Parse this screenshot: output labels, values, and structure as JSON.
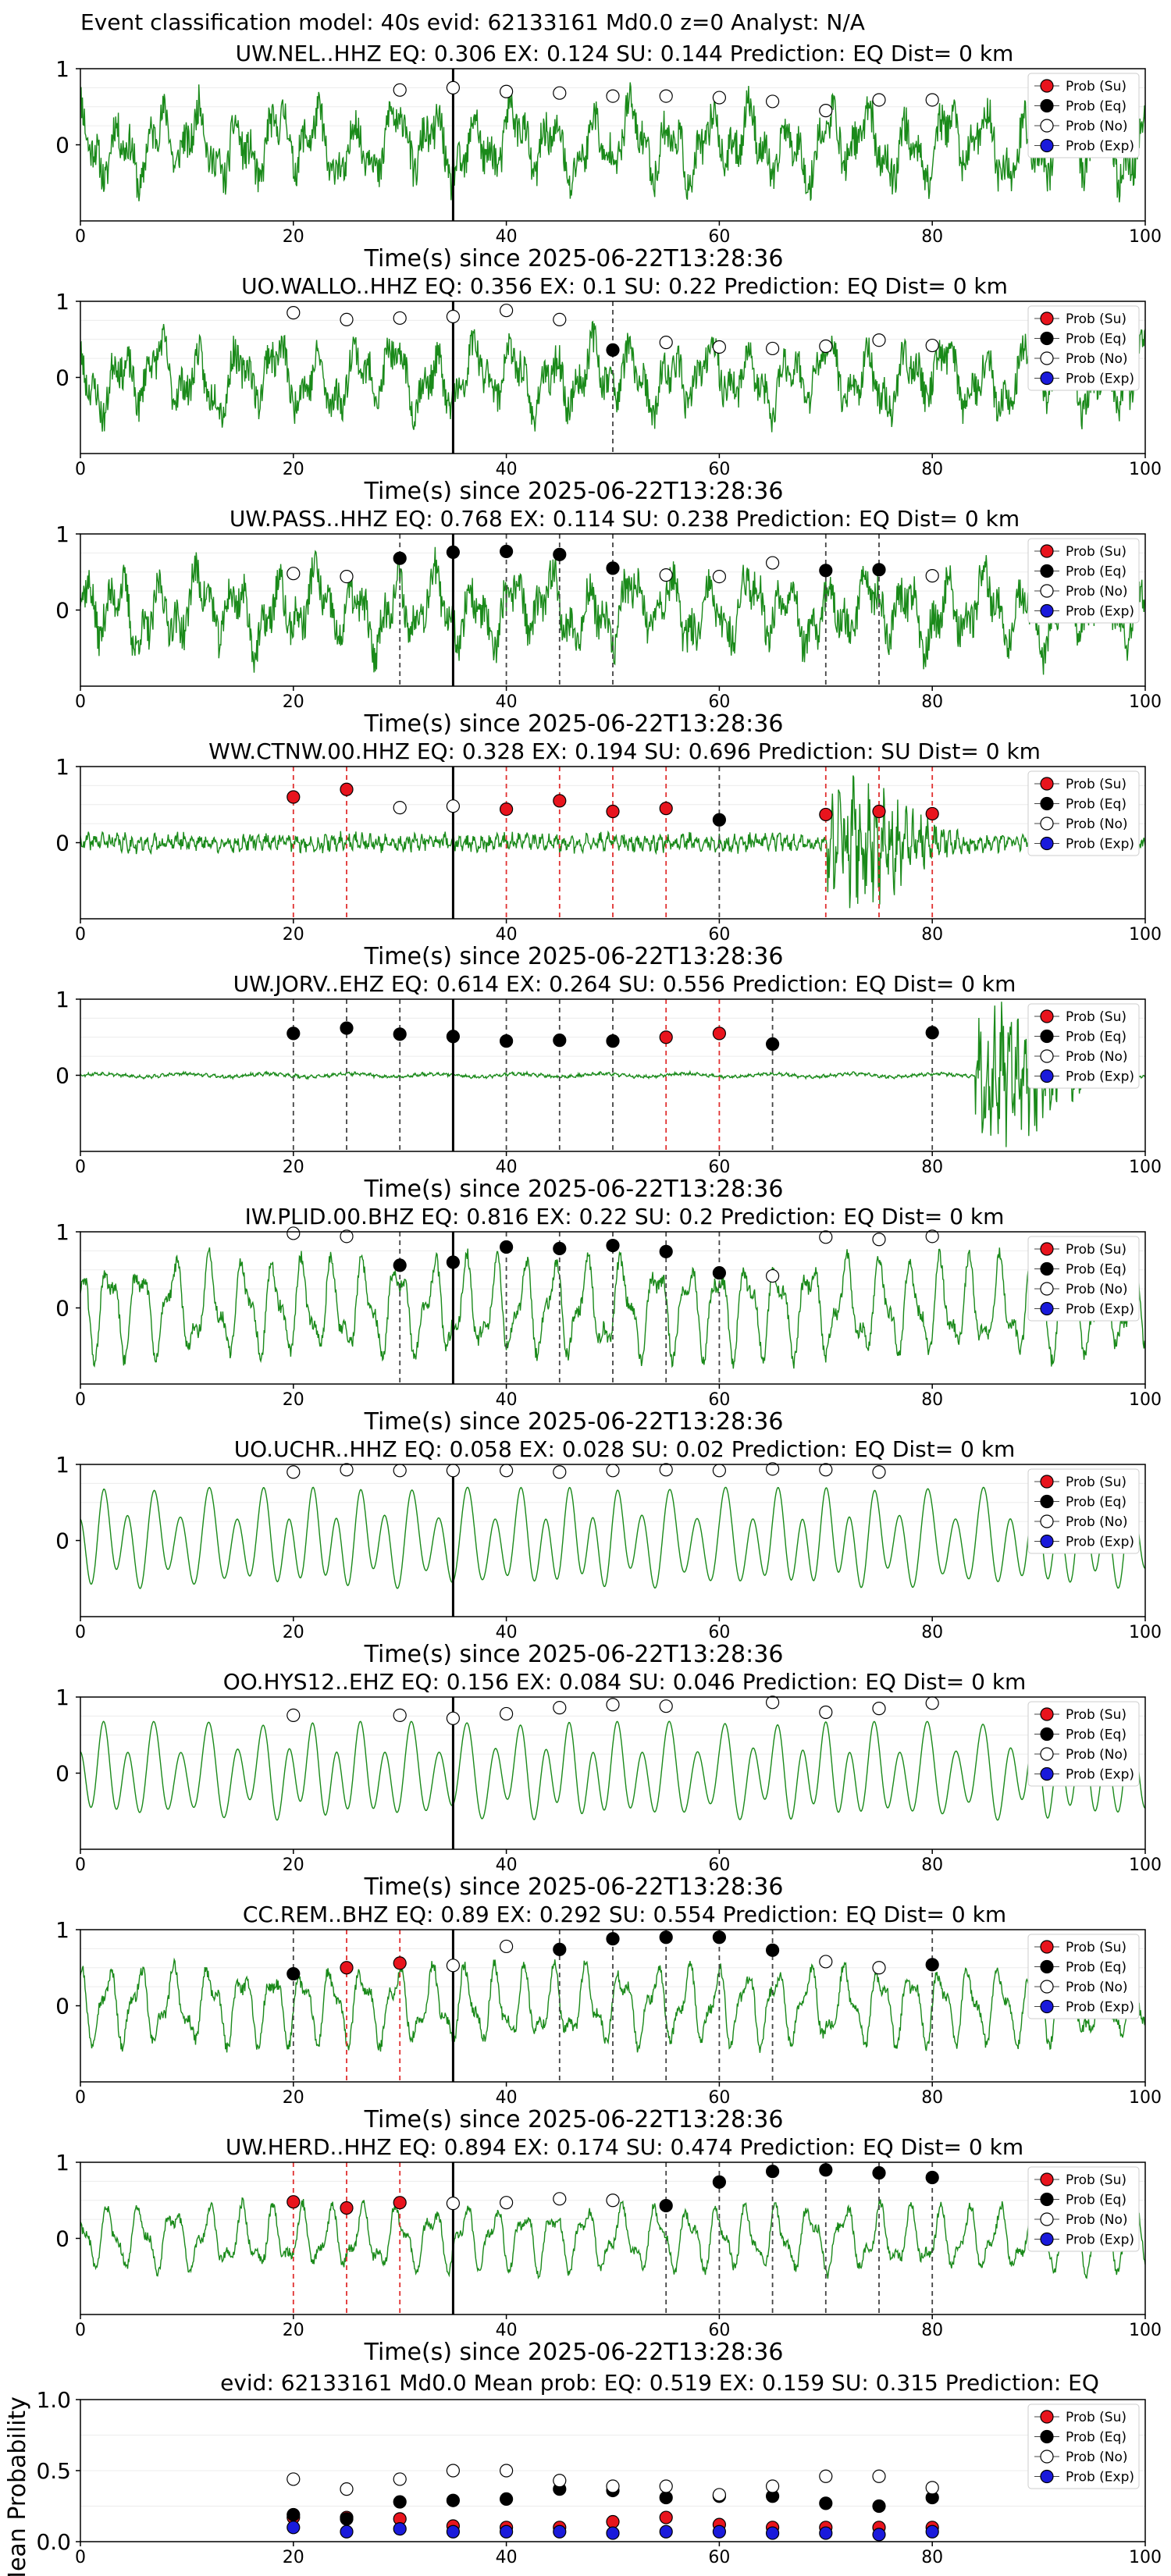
{
  "figure_title": "Event classification model: 40s evid: 62133161 Md0.0 z=0 Analyst: N/A",
  "chart_data": [
    {
      "type": "scatter",
      "title": "UW.NEL..HHZ   EQ: 0.306  EX: 0.124  SU: 0.144   Prediction: EQ    Dist= 0 km",
      "xlabel": "Time(s) since 2025-06-22T13:28:36",
      "xlim": [
        0,
        100
      ],
      "ylim": [
        -1,
        1
      ],
      "x_ticks": [
        0,
        20,
        40,
        60,
        80,
        100
      ],
      "y_ticks": [
        0,
        1
      ],
      "waveform": {
        "style": "noisy",
        "amp": 0.55,
        "seed": 11
      },
      "vertical_solid_x": 35,
      "vertical_dashed": [],
      "points": {
        "x": [
          30,
          35,
          40,
          45,
          50,
          55,
          60,
          65,
          70,
          75,
          80
        ],
        "y": [
          0.72,
          0.75,
          0.7,
          0.68,
          0.64,
          0.64,
          0.62,
          0.57,
          0.45,
          0.59,
          0.59
        ],
        "class": [
          "No",
          "No",
          "No",
          "No",
          "No",
          "No",
          "No",
          "No",
          "No",
          "No",
          "No"
        ]
      }
    },
    {
      "type": "scatter",
      "title": "UO.WALLO..HHZ   EQ: 0.356  EX: 0.1  SU: 0.22   Prediction: EQ    Dist= 0 km",
      "xlabel": "Time(s) since 2025-06-22T13:28:36",
      "xlim": [
        0,
        100
      ],
      "ylim": [
        -1,
        1
      ],
      "x_ticks": [
        0,
        20,
        40,
        60,
        80,
        100
      ],
      "y_ticks": [
        0,
        1
      ],
      "waveform": {
        "style": "noisy",
        "amp": 0.5,
        "seed": 23
      },
      "vertical_solid_x": 35,
      "vertical_dashed": [
        {
          "x": 50,
          "color": "#444444"
        }
      ],
      "points": {
        "x": [
          20,
          25,
          30,
          35,
          40,
          45,
          50,
          55,
          60,
          65,
          70,
          75,
          80
        ],
        "y": [
          0.85,
          0.76,
          0.78,
          0.8,
          0.88,
          0.76,
          0.36,
          0.46,
          0.4,
          0.38,
          0.41,
          0.49,
          0.42
        ],
        "class": [
          "No",
          "No",
          "No",
          "No",
          "No",
          "No",
          "Eq",
          "No",
          "No",
          "No",
          "No",
          "No",
          "No"
        ]
      }
    },
    {
      "type": "scatter",
      "title": "UW.PASS..HHZ   EQ: 0.768  EX: 0.114  SU: 0.238   Prediction: EQ    Dist= 0 km",
      "xlabel": "Time(s) since 2025-06-22T13:28:36",
      "xlim": [
        0,
        100
      ],
      "ylim": [
        -1,
        1
      ],
      "x_ticks": [
        0,
        20,
        40,
        60,
        80,
        100
      ],
      "y_ticks": [
        0,
        1
      ],
      "waveform": {
        "style": "noisy",
        "amp": 0.55,
        "seed": 37
      },
      "vertical_solid_x": 35,
      "vertical_dashed": [
        {
          "x": 30,
          "color": "#444444"
        },
        {
          "x": 40,
          "color": "#444444"
        },
        {
          "x": 45,
          "color": "#444444"
        },
        {
          "x": 50,
          "color": "#444444"
        },
        {
          "x": 70,
          "color": "#444444"
        },
        {
          "x": 75,
          "color": "#444444"
        }
      ],
      "points": {
        "x": [
          20,
          25,
          30,
          35,
          40,
          45,
          50,
          55,
          60,
          65,
          70,
          75,
          80
        ],
        "y": [
          0.48,
          0.44,
          0.68,
          0.76,
          0.77,
          0.73,
          0.55,
          0.46,
          0.44,
          0.62,
          0.52,
          0.53,
          0.45
        ],
        "class": [
          "No",
          "No",
          "Eq",
          "Eq",
          "Eq",
          "Eq",
          "Eq",
          "No",
          "No",
          "No",
          "Eq",
          "Eq",
          "No"
        ]
      }
    },
    {
      "type": "scatter",
      "title": "WW.CTNW.00.HHZ   EQ: 0.328  EX: 0.194  SU: 0.696   Prediction: SU    Dist= 0 km",
      "xlabel": "Time(s) since 2025-06-22T13:28:36",
      "xlim": [
        0,
        100
      ],
      "ylim": [
        -1,
        1
      ],
      "x_ticks": [
        0,
        20,
        40,
        60,
        80,
        100
      ],
      "y_ticks": [
        0,
        1
      ],
      "waveform": {
        "style": "burst",
        "base": 0.1,
        "burst_start": 70,
        "burst_amp": 0.6,
        "seed": 41
      },
      "vertical_solid_x": 35,
      "vertical_dashed": [
        {
          "x": 20,
          "color": "#e03030"
        },
        {
          "x": 25,
          "color": "#e03030"
        },
        {
          "x": 40,
          "color": "#e03030"
        },
        {
          "x": 45,
          "color": "#e03030"
        },
        {
          "x": 50,
          "color": "#e03030"
        },
        {
          "x": 55,
          "color": "#e03030"
        },
        {
          "x": 60,
          "color": "#444444"
        },
        {
          "x": 70,
          "color": "#e03030"
        },
        {
          "x": 75,
          "color": "#e03030"
        },
        {
          "x": 80,
          "color": "#e03030"
        }
      ],
      "points": {
        "x": [
          20,
          25,
          30,
          35,
          40,
          45,
          50,
          55,
          60,
          70,
          75,
          80
        ],
        "y": [
          0.6,
          0.7,
          0.46,
          0.48,
          0.44,
          0.55,
          0.41,
          0.45,
          0.3,
          0.37,
          0.41,
          0.38
        ],
        "class": [
          "Su",
          "Su",
          "No",
          "No",
          "Su",
          "Su",
          "Su",
          "Su",
          "Eq",
          "Su",
          "Su",
          "Su"
        ]
      }
    },
    {
      "type": "scatter",
      "title": "UW.JORV..EHZ   EQ: 0.614  EX: 0.264  SU: 0.556   Prediction: EQ    Dist= 0 km",
      "xlabel": "Time(s) since 2025-06-22T13:28:36",
      "xlim": [
        0,
        100
      ],
      "ylim": [
        -1,
        1
      ],
      "x_ticks": [
        0,
        20,
        40,
        60,
        80,
        100
      ],
      "y_ticks": [
        0,
        1
      ],
      "waveform": {
        "style": "burst",
        "base": 0.02,
        "burst_start": 84,
        "burst_amp": 0.85,
        "seed": 53
      },
      "vertical_solid_x": 35,
      "vertical_dashed": [
        {
          "x": 20,
          "color": "#444444"
        },
        {
          "x": 25,
          "color": "#444444"
        },
        {
          "x": 30,
          "color": "#444444"
        },
        {
          "x": 40,
          "color": "#444444"
        },
        {
          "x": 45,
          "color": "#444444"
        },
        {
          "x": 50,
          "color": "#444444"
        },
        {
          "x": 55,
          "color": "#e03030"
        },
        {
          "x": 60,
          "color": "#e03030"
        },
        {
          "x": 65,
          "color": "#444444"
        },
        {
          "x": 80,
          "color": "#444444"
        }
      ],
      "points": {
        "x": [
          20,
          25,
          30,
          35,
          40,
          45,
          50,
          55,
          60,
          65,
          80
        ],
        "y": [
          0.55,
          0.62,
          0.54,
          0.51,
          0.45,
          0.46,
          0.45,
          0.5,
          0.55,
          0.41,
          0.56
        ],
        "class": [
          "Eq",
          "Eq",
          "Eq",
          "Eq",
          "Eq",
          "Eq",
          "Eq",
          "Su",
          "Su",
          "Eq",
          "Eq"
        ]
      }
    },
    {
      "type": "scatter",
      "title": "IW.PLID.00.BHZ   EQ: 0.816  EX: 0.22  SU: 0.2   Prediction: EQ    Dist= 0 km",
      "xlabel": "Time(s) since 2025-06-22T13:28:36",
      "xlim": [
        0,
        100
      ],
      "ylim": [
        -1,
        1
      ],
      "x_ticks": [
        0,
        20,
        40,
        60,
        80,
        100
      ],
      "y_ticks": [
        0,
        1
      ],
      "waveform": {
        "style": "wave",
        "amp": 0.75,
        "seed": 61
      },
      "vertical_solid_x": 35,
      "vertical_dashed": [
        {
          "x": 30,
          "color": "#444444"
        },
        {
          "x": 40,
          "color": "#444444"
        },
        {
          "x": 45,
          "color": "#444444"
        },
        {
          "x": 50,
          "color": "#444444"
        },
        {
          "x": 55,
          "color": "#444444"
        },
        {
          "x": 60,
          "color": "#444444"
        }
      ],
      "points": {
        "x": [
          20,
          25,
          30,
          35,
          40,
          45,
          50,
          55,
          60,
          65,
          70,
          75,
          80
        ],
        "y": [
          0.98,
          0.94,
          0.56,
          0.6,
          0.8,
          0.78,
          0.82,
          0.74,
          0.46,
          0.42,
          0.93,
          0.9,
          0.94
        ],
        "class": [
          "No",
          "No",
          "Eq",
          "Eq",
          "Eq",
          "Eq",
          "Eq",
          "Eq",
          "Eq",
          "No",
          "No",
          "No",
          "No"
        ]
      }
    },
    {
      "type": "scatter",
      "title": "UO.UCHR..HHZ   EQ: 0.058  EX: 0.028  SU: 0.02   Prediction: EQ    Dist= 0 km",
      "xlabel": "Time(s) since 2025-06-22T13:28:36",
      "xlim": [
        0,
        100
      ],
      "ylim": [
        -1,
        1
      ],
      "x_ticks": [
        0,
        20,
        40,
        60,
        80,
        100
      ],
      "y_ticks": [
        0,
        1
      ],
      "waveform": {
        "style": "smooth",
        "amp": 0.7,
        "seed": 71
      },
      "vertical_solid_x": 35,
      "vertical_dashed": [],
      "points": {
        "x": [
          20,
          25,
          30,
          35,
          40,
          45,
          50,
          55,
          60,
          65,
          70,
          75
        ],
        "y": [
          0.9,
          0.93,
          0.92,
          0.92,
          0.92,
          0.9,
          0.92,
          0.93,
          0.92,
          0.94,
          0.93,
          0.9
        ],
        "class": [
          "No",
          "No",
          "No",
          "No",
          "No",
          "No",
          "No",
          "No",
          "No",
          "No",
          "No",
          "No"
        ]
      }
    },
    {
      "type": "scatter",
      "title": "OO.HYS12..EHZ   EQ: 0.156  EX: 0.084  SU: 0.046   Prediction: EQ    Dist= 0 km",
      "xlabel": "Time(s) since 2025-06-22T13:28:36",
      "xlim": [
        0,
        100
      ],
      "ylim": [
        -1,
        1
      ],
      "x_ticks": [
        0,
        20,
        40,
        60,
        80,
        100
      ],
      "y_ticks": [
        0,
        1
      ],
      "waveform": {
        "style": "smooth",
        "amp": 0.68,
        "seed": 83
      },
      "vertical_solid_x": 35,
      "vertical_dashed": [],
      "points": {
        "x": [
          20,
          30,
          35,
          40,
          45,
          50,
          55,
          65,
          70,
          75,
          80
        ],
        "y": [
          0.76,
          0.76,
          0.72,
          0.78,
          0.86,
          0.9,
          0.88,
          0.93,
          0.8,
          0.85,
          0.92
        ],
        "class": [
          "No",
          "No",
          "No",
          "No",
          "No",
          "No",
          "No",
          "No",
          "No",
          "No",
          "No"
        ]
      }
    },
    {
      "type": "scatter",
      "title": "CC.REM..BHZ   EQ: 0.89  EX: 0.292  SU: 0.554   Prediction: EQ    Dist= 0 km",
      "xlabel": "Time(s) since 2025-06-22T13:28:36",
      "xlim": [
        0,
        100
      ],
      "ylim": [
        -1,
        1
      ],
      "x_ticks": [
        0,
        20,
        40,
        60,
        80,
        100
      ],
      "y_ticks": [
        0,
        1
      ],
      "waveform": {
        "style": "wave",
        "amp": 0.6,
        "seed": 97
      },
      "vertical_solid_x": 35,
      "vertical_dashed": [
        {
          "x": 20,
          "color": "#444444"
        },
        {
          "x": 25,
          "color": "#e03030"
        },
        {
          "x": 30,
          "color": "#e03030"
        },
        {
          "x": 45,
          "color": "#444444"
        },
        {
          "x": 50,
          "color": "#444444"
        },
        {
          "x": 55,
          "color": "#444444"
        },
        {
          "x": 60,
          "color": "#444444"
        },
        {
          "x": 65,
          "color": "#444444"
        },
        {
          "x": 80,
          "color": "#444444"
        }
      ],
      "points": {
        "x": [
          20,
          25,
          30,
          35,
          40,
          45,
          50,
          55,
          60,
          65,
          70,
          75,
          80
        ],
        "y": [
          0.42,
          0.5,
          0.56,
          0.53,
          0.78,
          0.74,
          0.88,
          0.9,
          0.9,
          0.73,
          0.58,
          0.5,
          0.54
        ],
        "class": [
          "Eq",
          "Su",
          "Su",
          "No",
          "No",
          "Eq",
          "Eq",
          "Eq",
          "Eq",
          "Eq",
          "No",
          "No",
          "Eq"
        ]
      }
    },
    {
      "type": "scatter",
      "title": "UW.HERD..HHZ   EQ: 0.894  EX: 0.174  SU: 0.474   Prediction: EQ    Dist= 0 km",
      "xlabel": "Time(s) since 2025-06-22T13:28:36",
      "xlim": [
        0,
        100
      ],
      "ylim": [
        -1,
        1
      ],
      "x_ticks": [
        0,
        20,
        40,
        60,
        80,
        100
      ],
      "y_ticks": [
        0,
        1
      ],
      "waveform": {
        "style": "wave",
        "amp": 0.5,
        "seed": 103
      },
      "vertical_solid_x": 35,
      "vertical_dashed": [
        {
          "x": 20,
          "color": "#e03030"
        },
        {
          "x": 25,
          "color": "#e03030"
        },
        {
          "x": 30,
          "color": "#e03030"
        },
        {
          "x": 55,
          "color": "#444444"
        },
        {
          "x": 60,
          "color": "#444444"
        },
        {
          "x": 65,
          "color": "#444444"
        },
        {
          "x": 70,
          "color": "#444444"
        },
        {
          "x": 75,
          "color": "#444444"
        },
        {
          "x": 80,
          "color": "#444444"
        }
      ],
      "points": {
        "x": [
          20,
          25,
          30,
          35,
          40,
          45,
          50,
          55,
          60,
          65,
          70,
          75,
          80
        ],
        "y": [
          0.48,
          0.4,
          0.47,
          0.46,
          0.47,
          0.52,
          0.5,
          0.43,
          0.74,
          0.88,
          0.9,
          0.86,
          0.8
        ],
        "class": [
          "Su",
          "Su",
          "Su",
          "No",
          "No",
          "No",
          "No",
          "Eq",
          "Eq",
          "Eq",
          "Eq",
          "Eq",
          "Eq"
        ]
      }
    }
  ],
  "summary_chart": {
    "type": "scatter",
    "title": "evid: 62133161  Md0.0   Mean prob:   EQ: 0.519  EX: 0.159  SU: 0.315   Prediction: EQ",
    "ylabel": "Mean Probability",
    "xlim": [
      0,
      100
    ],
    "ylim": [
      0,
      1
    ],
    "x_ticks": [
      0,
      20,
      40,
      60,
      80,
      100
    ],
    "y_ticks": [
      0.0,
      0.5,
      1.0
    ],
    "y_tick_labels": [
      "0.0",
      "0.5",
      "1.0"
    ],
    "x": [
      20,
      25,
      30,
      35,
      40,
      45,
      50,
      55,
      60,
      65,
      70,
      75,
      80
    ],
    "series": [
      {
        "name": "Prob (Su)",
        "class": "Su",
        "values": [
          0.17,
          0.17,
          0.16,
          0.11,
          0.1,
          0.1,
          0.14,
          0.17,
          0.12,
          0.1,
          0.1,
          0.1,
          0.1
        ]
      },
      {
        "name": "Prob (Eq)",
        "class": "Eq",
        "values": [
          0.19,
          0.16,
          0.28,
          0.29,
          0.3,
          0.37,
          0.36,
          0.31,
          0.32,
          0.32,
          0.27,
          0.25,
          0.31
        ]
      },
      {
        "name": "Prob (No)",
        "class": "No",
        "values": [
          0.44,
          0.37,
          0.44,
          0.5,
          0.5,
          0.43,
          0.39,
          0.39,
          0.33,
          0.39,
          0.46,
          0.46,
          0.38
        ]
      },
      {
        "name": "Prob (Exp)",
        "class": "Exp",
        "values": [
          0.1,
          0.07,
          0.09,
          0.07,
          0.07,
          0.07,
          0.06,
          0.07,
          0.07,
          0.06,
          0.06,
          0.05,
          0.07
        ]
      }
    ]
  },
  "legend": [
    {
      "label": "Prob (Su)",
      "class": "Su"
    },
    {
      "label": "Prob (Eq)",
      "class": "Eq"
    },
    {
      "label": "Prob (No)",
      "class": "No"
    },
    {
      "label": "Prob (Exp)",
      "class": "Exp"
    }
  ],
  "class_colors": {
    "Su": "#e8141d",
    "Eq": "#000000",
    "No": "#ffffff",
    "Exp": "#1a1adb"
  },
  "waveform_color": "#1a8a1a",
  "solid_line_color": "#000000"
}
